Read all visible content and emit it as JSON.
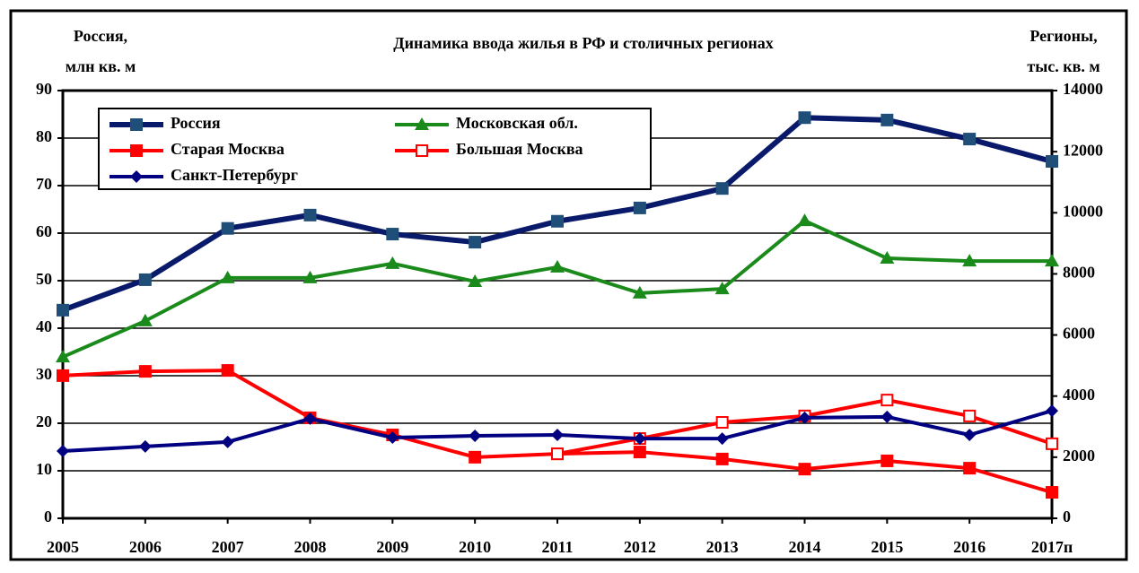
{
  "chart_data": {
    "type": "line",
    "title": "Динамика ввода жилья в РФ и столичных регионах",
    "ylabel": [
      "Россия,",
      "млн кв. м"
    ],
    "y2label": [
      "Регионы,",
      "тыс. кв. м"
    ],
    "categories": [
      "2005",
      "2006",
      "2007",
      "2008",
      "2009",
      "2010",
      "2011",
      "2012",
      "2013",
      "2014",
      "2015",
      "2016",
      "2017п"
    ],
    "ylim": [
      0,
      90
    ],
    "yticks": [
      0,
      10,
      20,
      30,
      40,
      50,
      60,
      70,
      80,
      90
    ],
    "y2lim": [
      0,
      14000
    ],
    "y2ticks": [
      0,
      2000,
      4000,
      6000,
      8000,
      10000,
      12000,
      14000
    ],
    "grid": true,
    "series": [
      {
        "name": "Россия",
        "color": "#0a1a6b",
        "marker_color": "#1f4e79",
        "marker": "square",
        "values": [
          43.8,
          50.2,
          61,
          63.8,
          59.8,
          58.1,
          62.5,
          65.3,
          69.4,
          84.3,
          83.8,
          79.8,
          75.1
        ]
      },
      {
        "name": "Московская обл.",
        "color": "#1a8a1a",
        "marker_color": "#1a8a1a",
        "marker": "triangle",
        "axis": "y2",
        "values": [
          5280,
          6460,
          7870,
          7870,
          8340,
          7750,
          8220,
          7370,
          7510,
          9740,
          8510,
          8420,
          8420
        ]
      },
      {
        "name": "Старая Москва",
        "color": "#ff0000",
        "marker_color": "#ff0000",
        "marker": "square",
        "axis": "y2",
        "values": [
          4670,
          4810,
          4840,
          3290,
          2730,
          2000,
          2110,
          2170,
          1940,
          1610,
          1880,
          1640,
          850
        ]
      },
      {
        "name": "Большая Москва",
        "color": "#ff0000",
        "marker_color": "#ff0000",
        "marker": "open-square",
        "axis": "y2",
        "values": [
          null,
          null,
          null,
          null,
          null,
          null,
          2110,
          2610,
          3140,
          3350,
          3870,
          3350,
          2440
        ]
      },
      {
        "name": "Санкт-Петербург",
        "color": "#000080",
        "marker_color": "#000080",
        "marker": "diamond",
        "axis": "y2",
        "values": [
          2200,
          2350,
          2500,
          3260,
          2640,
          2700,
          2730,
          2610,
          2610,
          3290,
          3320,
          2730,
          3520
        ]
      }
    ]
  }
}
